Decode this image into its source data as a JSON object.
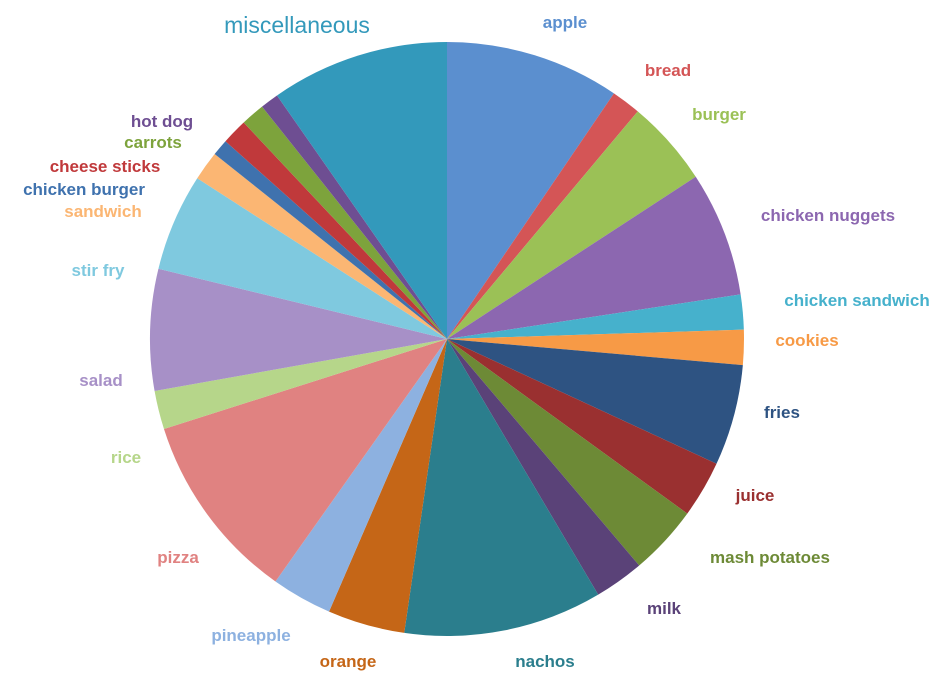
{
  "chart_data": {
    "type": "pie",
    "title": "",
    "start_angle_deg": 0,
    "direction": "clockwise",
    "slices": [
      {
        "label": "apple",
        "value": 9.5,
        "color": "#5B8FCF"
      },
      {
        "label": "bread",
        "value": 1.6,
        "color": "#D45556"
      },
      {
        "label": "burger",
        "value": 4.7,
        "color": "#9BC156"
      },
      {
        "label": "chicken nuggets",
        "value": 6.8,
        "color": "#8C67B0"
      },
      {
        "label": "chicken sandwich",
        "value": 1.9,
        "color": "#46B1CC"
      },
      {
        "label": "cookies",
        "value": 1.9,
        "color": "#F79A46"
      },
      {
        "label": "fries",
        "value": 5.5,
        "color": "#2E5382"
      },
      {
        "label": "juice",
        "value": 3.1,
        "color": "#9A3030"
      },
      {
        "label": "mash potatoes",
        "value": 3.8,
        "color": "#6D8A36"
      },
      {
        "label": "milk",
        "value": 2.7,
        "color": "#5A4278"
      },
      {
        "label": "nachos",
        "value": 10.8,
        "color": "#2B7E8D"
      },
      {
        "label": "orange",
        "value": 4.2,
        "color": "#C56617"
      },
      {
        "label": "pineapple",
        "value": 3.3,
        "color": "#8DB1E0"
      },
      {
        "label": "pizza",
        "value": 10.3,
        "color": "#E08281"
      },
      {
        "label": "rice",
        "value": 2.1,
        "color": "#B6D68A"
      },
      {
        "label": "salad",
        "value": 6.6,
        "color": "#A790C7"
      },
      {
        "label": "stir fry",
        "value": 5.3,
        "color": "#7FC9DF"
      },
      {
        "label": "sandwich",
        "value": 1.6,
        "color": "#FBB673"
      },
      {
        "label": "chicken burger",
        "value": 0.9,
        "color": "#3F72AE"
      },
      {
        "label": "cheese sticks",
        "value": 1.4,
        "color": "#C0393B"
      },
      {
        "label": "carrots",
        "value": 1.3,
        "color": "#7DA33C"
      },
      {
        "label": "hot dog",
        "value": 1.0,
        "color": "#6E4E92"
      },
      {
        "label": "miscellaneous",
        "value": 9.7,
        "color": "#3399BB"
      }
    ]
  }
}
